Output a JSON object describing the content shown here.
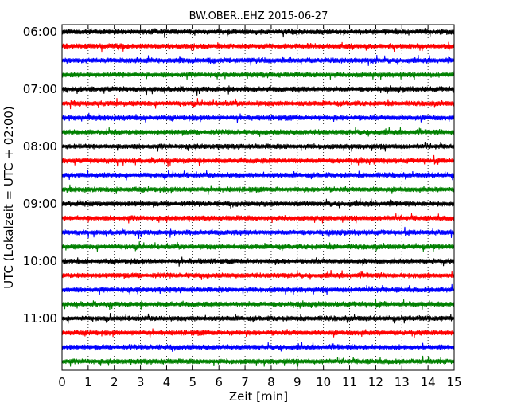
{
  "chart_data": {
    "type": "line",
    "title": "BW.OBER..EHZ 2015-06-27",
    "xlabel": "Zeit  [min]",
    "ylabel": "UTC (Lokalzeit = UTC + 02:00)",
    "xlim": [
      0,
      15
    ],
    "x_ticks": [
      "0",
      "1",
      "2",
      "3",
      "4",
      "5",
      "6",
      "7",
      "8",
      "9",
      "10",
      "11",
      "12",
      "13",
      "14",
      "15"
    ],
    "y_ticks": [
      "06:00",
      "07:00",
      "08:00",
      "09:00",
      "10:00",
      "11:00"
    ],
    "grid": "vertical dotted",
    "trace_start": "06:00",
    "trace_end": "11:45",
    "trace_interval_minutes": 15,
    "color_cycle": [
      "#000000",
      "#ff0000",
      "#0000ff",
      "#008000"
    ],
    "traces": [
      {
        "start": "06:00",
        "color": "#000000"
      },
      {
        "start": "06:15",
        "color": "#ff0000"
      },
      {
        "start": "06:30",
        "color": "#0000ff"
      },
      {
        "start": "06:45",
        "color": "#008000"
      },
      {
        "start": "07:00",
        "color": "#000000"
      },
      {
        "start": "07:15",
        "color": "#ff0000"
      },
      {
        "start": "07:30",
        "color": "#0000ff"
      },
      {
        "start": "07:45",
        "color": "#008000"
      },
      {
        "start": "08:00",
        "color": "#000000"
      },
      {
        "start": "08:15",
        "color": "#ff0000"
      },
      {
        "start": "08:30",
        "color": "#0000ff"
      },
      {
        "start": "08:45",
        "color": "#008000"
      },
      {
        "start": "09:00",
        "color": "#000000"
      },
      {
        "start": "09:15",
        "color": "#ff0000"
      },
      {
        "start": "09:30",
        "color": "#0000ff"
      },
      {
        "start": "09:45",
        "color": "#008000"
      },
      {
        "start": "10:00",
        "color": "#000000"
      },
      {
        "start": "10:15",
        "color": "#ff0000"
      },
      {
        "start": "10:30",
        "color": "#0000ff"
      },
      {
        "start": "10:45",
        "color": "#008000"
      },
      {
        "start": "11:00",
        "color": "#000000"
      },
      {
        "start": "11:15",
        "color": "#ff0000"
      },
      {
        "start": "11:30",
        "color": "#0000ff"
      },
      {
        "start": "11:45",
        "color": "#008000"
      }
    ]
  }
}
